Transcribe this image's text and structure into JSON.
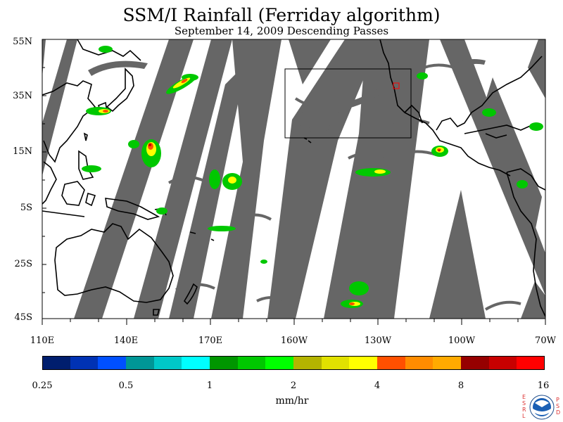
{
  "title": "SSM/I Rainfall (Ferriday algorithm)",
  "subtitle": "September 14, 2009  Descending Passes",
  "y_axis_labels": [
    "55N",
    "35N",
    "15N",
    "5S",
    "25S",
    "45S"
  ],
  "x_axis_labels": [
    "110E",
    "140E",
    "170E",
    "160W",
    "130W",
    "100W",
    "70W"
  ],
  "colorbar": {
    "colors": [
      "#001e6e",
      "#0032b4",
      "#0050ff",
      "#009696",
      "#00c8c8",
      "#00ffff",
      "#009600",
      "#00c800",
      "#00ff00",
      "#b4b400",
      "#e1e100",
      "#ffff00",
      "#ff5000",
      "#ff8c00",
      "#ffaa00",
      "#960000",
      "#c80000",
      "#ff0000"
    ],
    "tick_labels": [
      "0.25",
      "0.5",
      "1",
      "2",
      "4",
      "8",
      "16"
    ],
    "units": "mm/hr"
  },
  "swath_color": "#666666",
  "logo": {
    "left_letters": "ESRL",
    "right_letters": "PSD",
    "name": "noaa-logo"
  }
}
